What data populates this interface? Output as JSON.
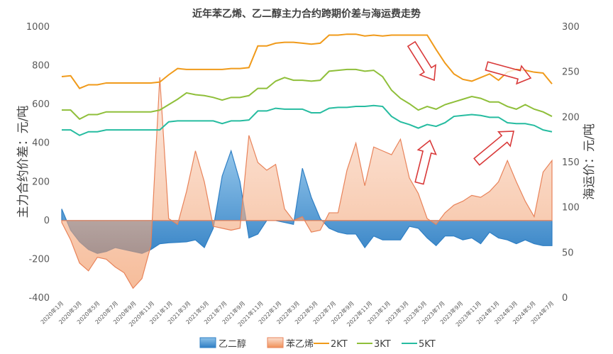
{
  "chart_data": {
    "type": "combo-area-line",
    "title": "近年苯乙烯、乙二醇主力合约跨期价差与海运费走势",
    "ylabel_left": "主力合约价差：元/吨",
    "ylabel_right": "海运价：元/吨",
    "ylim_left": [
      -400,
      1000
    ],
    "ylim_right": [
      0,
      300
    ],
    "yticks_left": [
      "-400",
      "-200",
      "0",
      "200",
      "400",
      "600",
      "800",
      "1000"
    ],
    "yticks_right": [
      "0",
      "50",
      "100",
      "150",
      "200",
      "250",
      "300"
    ],
    "x_tick_labels": [
      "2020年1月",
      "2020年3月",
      "2020年5月",
      "2020年7月",
      "2020年9月",
      "2020年11月",
      "2021年1月",
      "2021年3月",
      "2021年5月",
      "2021年7月",
      "2021年9月",
      "2021年11月",
      "2022年1月",
      "2022年3月",
      "2022年5月",
      "2022年7月",
      "2022年9月",
      "2022年11月",
      "2023年1月",
      "2023年3月",
      "2023年5月",
      "2023年7月",
      "2023年9月",
      "2023年11月",
      "2024年1月",
      "2024年3月",
      "2024年5月",
      "2024年7月"
    ],
    "grid": false,
    "legend_position": "bottom",
    "x_points": 56,
    "series": [
      {
        "name": "乙二醇",
        "type": "area",
        "axis": "left",
        "color": "#3d8fd0",
        "values": [
          60,
          -50,
          -110,
          -150,
          -170,
          -160,
          -140,
          -150,
          -160,
          -170,
          -150,
          -120,
          -115,
          -113,
          -110,
          -100,
          -140,
          -40,
          230,
          360,
          200,
          -90,
          -70,
          0,
          0,
          -10,
          -20,
          270,
          120,
          10,
          -40,
          -60,
          -70,
          -70,
          -140,
          -80,
          -100,
          -100,
          -100,
          -30,
          -40,
          -90,
          -130,
          -80,
          -80,
          -100,
          -90,
          -120,
          -60,
          -90,
          -100,
          -120,
          -100,
          -120,
          -130,
          -130
        ]
      },
      {
        "name": "苯乙烯",
        "type": "area",
        "axis": "left",
        "color": "#f0a07a",
        "values": [
          -10,
          -100,
          -220,
          -260,
          -190,
          -200,
          -240,
          -270,
          -350,
          -300,
          -130,
          740,
          10,
          -20,
          150,
          360,
          200,
          -30,
          -40,
          -50,
          -40,
          440,
          300,
          260,
          290,
          60,
          0,
          20,
          -60,
          -50,
          40,
          40,
          260,
          400,
          180,
          380,
          360,
          340,
          420,
          220,
          140,
          10,
          -20,
          40,
          80,
          100,
          130,
          120,
          150,
          200,
          310,
          200,
          100,
          20,
          250,
          310
        ]
      },
      {
        "name": "2KT",
        "type": "line",
        "axis": "right",
        "color": "#f09a1a",
        "values": [
          245,
          246,
          232,
          236,
          236,
          238,
          238,
          238,
          238,
          238,
          238,
          239,
          247,
          254,
          253,
          253,
          253,
          253,
          253,
          254,
          254,
          255,
          279,
          279,
          282,
          283,
          283,
          282,
          281,
          282,
          291,
          291,
          292,
          292,
          290,
          291,
          290,
          291,
          291,
          291,
          291,
          291,
          275,
          260,
          248,
          242,
          240,
          244,
          248,
          241,
          250,
          253,
          252,
          250,
          249,
          237
        ]
      },
      {
        "name": "3KT",
        "type": "line",
        "axis": "right",
        "color": "#8fbf3a",
        "values": [
          208,
          208,
          198,
          203,
          203,
          206,
          206,
          206,
          206,
          206,
          206,
          208,
          214,
          220,
          227,
          225,
          224,
          222,
          219,
          222,
          222,
          224,
          232,
          232,
          240,
          244,
          241,
          241,
          240,
          241,
          251,
          252,
          253,
          253,
          251,
          252,
          245,
          230,
          221,
          215,
          208,
          212,
          209,
          214,
          217,
          220,
          223,
          221,
          217,
          217,
          212,
          209,
          214,
          209,
          206,
          201
        ]
      },
      {
        "name": "5KT",
        "type": "line",
        "axis": "right",
        "color": "#26bca0",
        "values": [
          186,
          186,
          180,
          184,
          184,
          186,
          186,
          186,
          186,
          186,
          186,
          186,
          195,
          196,
          196,
          196,
          196,
          196,
          193,
          196,
          196,
          197,
          207,
          207,
          210,
          209,
          209,
          209,
          205,
          205,
          210,
          211,
          211,
          212,
          212,
          213,
          212,
          201,
          195,
          192,
          188,
          192,
          190,
          194,
          201,
          202,
          203,
          202,
          200,
          200,
          194,
          193,
          193,
          191,
          186,
          184
        ]
      }
    ]
  }
}
